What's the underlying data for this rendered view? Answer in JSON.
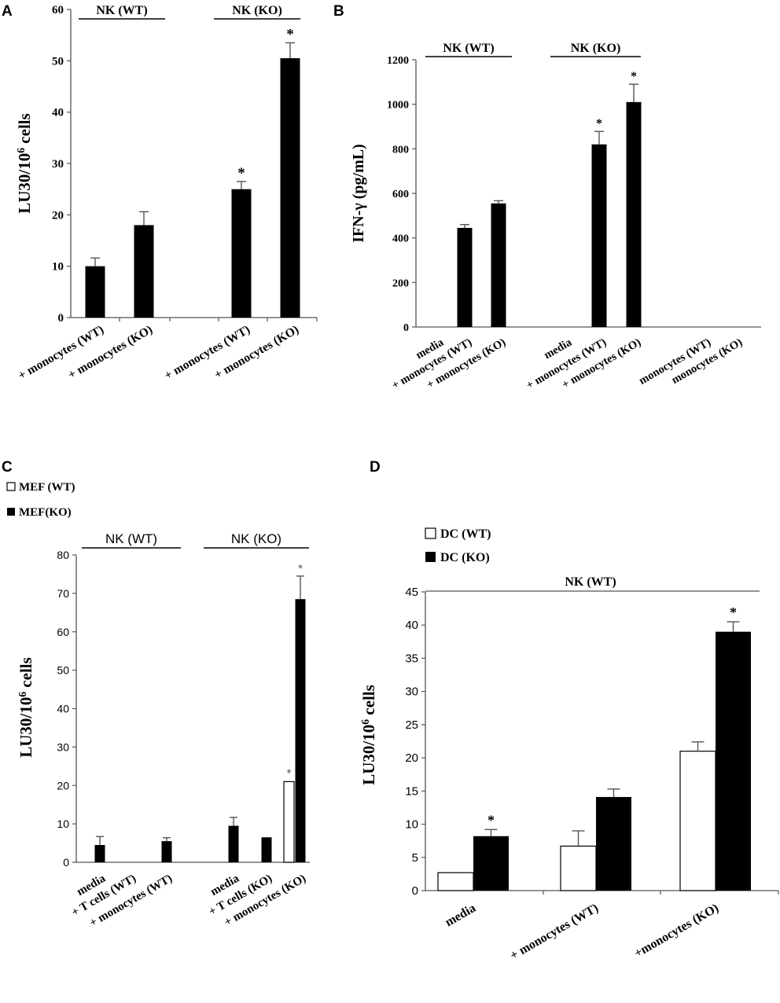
{
  "chart_data": [
    {
      "panel": "A",
      "type": "bar",
      "ylabel_main": "LU30/10",
      "ylabel_sup": "6",
      "ylabel_tail": " cells",
      "ylim": [
        0,
        60
      ],
      "yticks": [
        "0",
        "10",
        "20",
        "30",
        "40",
        "50",
        "60"
      ],
      "groups": [
        "NK (WT)",
        "NK (KO)"
      ],
      "categories": [
        "+ monocytes (WT)",
        "+ monocytes (KO)",
        "+ monocytes (WT)",
        "+ monocytes (KO)"
      ],
      "values": [
        10,
        18,
        25,
        50.5
      ],
      "errors": [
        1.6,
        2.6,
        1.5,
        3
      ],
      "significance": [
        "",
        "",
        "*",
        "*"
      ]
    },
    {
      "panel": "B",
      "type": "bar",
      "ylabel": "IFN-γ (pg/mL)",
      "ylim": [
        0,
        1200
      ],
      "yticks": [
        "0",
        "200",
        "400",
        "600",
        "800",
        "1000",
        "1200"
      ],
      "groups": [
        "NK (WT)",
        "NK (KO)"
      ],
      "categories": [
        "media",
        "+ monocytes (WT)",
        "+ monocytes (KO)",
        "media",
        "+ monocytes (WT)",
        "+ monocytes (KO)",
        "monocytes (WT)",
        "monocytes (KO)"
      ],
      "values": [
        0,
        445,
        555,
        0,
        820,
        1010,
        0,
        0
      ],
      "errors": [
        0,
        15,
        12,
        0,
        58,
        80,
        0,
        0
      ],
      "significance": [
        "",
        "",
        "",
        "",
        "*",
        "*",
        "",
        ""
      ]
    },
    {
      "panel": "C",
      "type": "bar",
      "ylabel_main": "LU30/10",
      "ylabel_sup": "6",
      "ylabel_tail": " cells",
      "ylim": [
        0,
        80
      ],
      "yticks": [
        "0",
        "10",
        "20",
        "30",
        "40",
        "50",
        "60",
        "70",
        "80"
      ],
      "legend": [
        "MEF (WT)",
        "MEF(KO)"
      ],
      "groups": [
        "NK (WT)",
        "NK (KO)"
      ],
      "categories": [
        "media",
        "+ T cells (WT)",
        "+ monocytes (WT)",
        "media",
        "+ T cells (KO)",
        "+ monocytes (KO)"
      ],
      "series": [
        {
          "name": "MEF (WT)",
          "values": [
            0,
            0,
            0,
            0,
            0,
            21
          ],
          "errors": [
            0,
            0,
            0,
            0,
            0,
            0
          ]
        },
        {
          "name": "MEF(KO)",
          "values": [
            4.5,
            0,
            5.5,
            9.5,
            6.5,
            68.5
          ],
          "errors": [
            2.2,
            0,
            0.9,
            2.2,
            0,
            6
          ]
        }
      ],
      "significance": [
        "",
        "",
        "",
        "",
        "",
        "*"
      ]
    },
    {
      "panel": "D",
      "type": "bar",
      "ylabel_main": "LU30/10",
      "ylabel_sup": "6",
      "ylabel_tail": " cells",
      "ylim": [
        0,
        45
      ],
      "yticks": [
        "0",
        "5",
        "10",
        "15",
        "20",
        "25",
        "30",
        "35",
        "40",
        "45"
      ],
      "legend": [
        "DC (WT)",
        "DC (KO)"
      ],
      "groups": [
        "NK (WT)"
      ],
      "categories": [
        "media",
        "+ monocytes (WT)",
        "+monocytes (KO)"
      ],
      "series": [
        {
          "name": "DC (WT)",
          "values": [
            2.7,
            6.7,
            21
          ],
          "errors": [
            0,
            2.3,
            1.4
          ]
        },
        {
          "name": "DC (KO)",
          "values": [
            8.2,
            14.1,
            39
          ],
          "errors": [
            1,
            1.2,
            1.5
          ]
        }
      ],
      "significance": [
        "*",
        "",
        "*"
      ]
    }
  ],
  "colors": {
    "bar_ko": "#000000",
    "bar_wt": "#ffffff",
    "axis": "#555555"
  },
  "star": "*"
}
